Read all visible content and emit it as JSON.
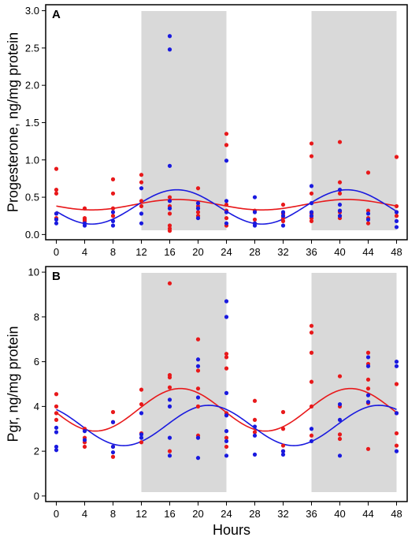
{
  "colors": {
    "red": "#e8191b",
    "blue": "#1a1adf",
    "shade": "#d9d9d9",
    "frame": "#000000"
  },
  "shared_x": {
    "label": "Hours",
    "ticks": [
      0,
      4,
      8,
      12,
      16,
      20,
      24,
      28,
      32,
      36,
      40,
      44,
      48
    ],
    "xlim": [
      -1.5,
      49.5
    ]
  },
  "chart_data": [
    {
      "type": "scatter",
      "panel_label": "A",
      "ylabel": "Progesterone, ng/mg protein",
      "ylim": [
        -0.07,
        3.08
      ],
      "yticks": [
        "0.0",
        "0.5",
        "1.0",
        "1.5",
        "2.0",
        "2.5",
        "3.0"
      ],
      "shaded_x_ranges": [
        [
          12,
          24
        ],
        [
          36,
          48
        ]
      ],
      "grid": false,
      "series": [
        {
          "color": "red",
          "points": [
            [
              0,
              0.88
            ],
            [
              0,
              0.6
            ],
            [
              0,
              0.55
            ],
            [
              0,
              0.28
            ],
            [
              0,
              0.22
            ],
            [
              4,
              0.35
            ],
            [
              4,
              0.22
            ],
            [
              4,
              0.2
            ],
            [
              4,
              0.18
            ],
            [
              8,
              0.74
            ],
            [
              8,
              0.55
            ],
            [
              8,
              0.35
            ],
            [
              8,
              0.25
            ],
            [
              12,
              0.8
            ],
            [
              12,
              0.7
            ],
            [
              12,
              0.45
            ],
            [
              12,
              0.38
            ],
            [
              16,
              0.5
            ],
            [
              16,
              0.38
            ],
            [
              16,
              0.28
            ],
            [
              16,
              0.12
            ],
            [
              16,
              0.08
            ],
            [
              16,
              0.05
            ],
            [
              20,
              0.62
            ],
            [
              20,
              0.38
            ],
            [
              20,
              0.3
            ],
            [
              20,
              0.25
            ],
            [
              24,
              1.35
            ],
            [
              24,
              1.2
            ],
            [
              24,
              0.4
            ],
            [
              24,
              0.32
            ],
            [
              24,
              0.22
            ],
            [
              24,
              0.12
            ],
            [
              28,
              0.32
            ],
            [
              28,
              0.2
            ],
            [
              28,
              0.15
            ],
            [
              32,
              0.4
            ],
            [
              32,
              0.28
            ],
            [
              32,
              0.22
            ],
            [
              32,
              0.18
            ],
            [
              36,
              1.22
            ],
            [
              36,
              1.05
            ],
            [
              36,
              0.55
            ],
            [
              36,
              0.28
            ],
            [
              36,
              0.22
            ],
            [
              36,
              0.18
            ],
            [
              40,
              1.24
            ],
            [
              40,
              0.7
            ],
            [
              40,
              0.55
            ],
            [
              40,
              0.3
            ],
            [
              40,
              0.22
            ],
            [
              44,
              0.83
            ],
            [
              44,
              0.32
            ],
            [
              44,
              0.22
            ],
            [
              44,
              0.15
            ],
            [
              48,
              1.04
            ],
            [
              48,
              0.38
            ],
            [
              48,
              0.3
            ],
            [
              48,
              0.25
            ]
          ],
          "fit": {
            "mesor": 0.4,
            "amplitude": 0.07,
            "peak_hour": 17
          }
        },
        {
          "color": "blue",
          "points": [
            [
              0,
              0.28
            ],
            [
              0,
              0.2
            ],
            [
              0,
              0.15
            ],
            [
              4,
              0.15
            ],
            [
              4,
              0.12
            ],
            [
              8,
              0.3
            ],
            [
              8,
              0.18
            ],
            [
              8,
              0.12
            ],
            [
              12,
              0.62
            ],
            [
              12,
              0.28
            ],
            [
              12,
              0.15
            ],
            [
              16,
              2.66
            ],
            [
              16,
              2.48
            ],
            [
              16,
              0.92
            ],
            [
              16,
              0.45
            ],
            [
              16,
              0.35
            ],
            [
              20,
              0.42
            ],
            [
              20,
              0.35
            ],
            [
              20,
              0.22
            ],
            [
              24,
              0.99
            ],
            [
              24,
              0.45
            ],
            [
              24,
              0.3
            ],
            [
              24,
              0.15
            ],
            [
              28,
              0.5
            ],
            [
              28,
              0.3
            ],
            [
              28,
              0.15
            ],
            [
              28,
              0.12
            ],
            [
              32,
              0.3
            ],
            [
              32,
              0.25
            ],
            [
              32,
              0.12
            ],
            [
              36,
              0.65
            ],
            [
              36,
              0.42
            ],
            [
              36,
              0.3
            ],
            [
              36,
              0.25
            ],
            [
              40,
              0.6
            ],
            [
              40,
              0.4
            ],
            [
              40,
              0.32
            ],
            [
              40,
              0.25
            ],
            [
              44,
              0.28
            ],
            [
              44,
              0.2
            ],
            [
              48,
              0.3
            ],
            [
              48,
              0.18
            ],
            [
              48,
              0.1
            ]
          ],
          "fit": {
            "mesor": 0.37,
            "amplitude": 0.23,
            "peak_hour": 17
          }
        }
      ]
    },
    {
      "type": "scatter",
      "panel_label": "B",
      "ylabel": "Pgr, ng/mg protein",
      "ylim": [
        -0.25,
        10.25
      ],
      "yticks": [
        "0",
        "2",
        "4",
        "6",
        "8",
        "10"
      ],
      "shaded_x_ranges": [
        [
          12,
          24
        ],
        [
          36,
          48
        ]
      ],
      "grid": false,
      "series": [
        {
          "color": "red",
          "points": [
            [
              0,
              4.55
            ],
            [
              0,
              4.0
            ],
            [
              0,
              3.7
            ],
            [
              0,
              3.4
            ],
            [
              4,
              3.0
            ],
            [
              4,
              2.6
            ],
            [
              4,
              2.4
            ],
            [
              4,
              2.2
            ],
            [
              8,
              3.75
            ],
            [
              8,
              3.3
            ],
            [
              8,
              2.2
            ],
            [
              8,
              1.75
            ],
            [
              12,
              4.75
            ],
            [
              12,
              4.1
            ],
            [
              12,
              2.8
            ],
            [
              12,
              2.4
            ],
            [
              16,
              9.5
            ],
            [
              16,
              5.4
            ],
            [
              16,
              5.3
            ],
            [
              16,
              4.85
            ],
            [
              16,
              2.0
            ],
            [
              20,
              7.0
            ],
            [
              20,
              5.6
            ],
            [
              20,
              4.8
            ],
            [
              20,
              4.0
            ],
            [
              20,
              2.7
            ],
            [
              24,
              6.35
            ],
            [
              24,
              6.2
            ],
            [
              24,
              5.7
            ],
            [
              24,
              3.7
            ],
            [
              24,
              2.6
            ],
            [
              24,
              2.2
            ],
            [
              28,
              4.25
            ],
            [
              28,
              3.4
            ],
            [
              28,
              2.85
            ],
            [
              32,
              3.75
            ],
            [
              32,
              3.0
            ],
            [
              32,
              2.25
            ],
            [
              32,
              2.0
            ],
            [
              36,
              7.6
            ],
            [
              36,
              7.3
            ],
            [
              36,
              6.4
            ],
            [
              36,
              5.1
            ],
            [
              36,
              4.0
            ],
            [
              36,
              2.7
            ],
            [
              40,
              5.35
            ],
            [
              40,
              4.0
            ],
            [
              40,
              2.75
            ],
            [
              40,
              2.55
            ],
            [
              44,
              6.4
            ],
            [
              44,
              5.9
            ],
            [
              44,
              5.2
            ],
            [
              44,
              4.8
            ],
            [
              44,
              4.15
            ],
            [
              44,
              2.1
            ],
            [
              48,
              5.0
            ],
            [
              48,
              3.7
            ],
            [
              48,
              2.8
            ],
            [
              48,
              2.25
            ]
          ],
          "fit": {
            "mesor": 3.85,
            "amplitude": 0.95,
            "peak_hour": 17.5
          }
        },
        {
          "color": "blue",
          "points": [
            [
              0,
              3.05
            ],
            [
              0,
              2.85
            ],
            [
              0,
              2.2
            ],
            [
              0,
              2.05
            ],
            [
              4,
              2.9
            ],
            [
              4,
              2.5
            ],
            [
              8,
              3.3
            ],
            [
              8,
              2.2
            ],
            [
              8,
              1.95
            ],
            [
              12,
              3.7
            ],
            [
              12,
              2.75
            ],
            [
              12,
              2.6
            ],
            [
              16,
              4.3
            ],
            [
              16,
              4.0
            ],
            [
              16,
              2.6
            ],
            [
              16,
              1.8
            ],
            [
              20,
              6.1
            ],
            [
              20,
              5.8
            ],
            [
              20,
              4.4
            ],
            [
              20,
              2.6
            ],
            [
              20,
              1.7
            ],
            [
              24,
              8.7
            ],
            [
              24,
              8.0
            ],
            [
              24,
              4.6
            ],
            [
              24,
              3.6
            ],
            [
              24,
              2.9
            ],
            [
              24,
              2.45
            ],
            [
              24,
              1.8
            ],
            [
              28,
              3.1
            ],
            [
              28,
              2.7
            ],
            [
              28,
              1.85
            ],
            [
              32,
              2.0
            ],
            [
              32,
              1.85
            ],
            [
              36,
              3.0
            ],
            [
              36,
              2.45
            ],
            [
              40,
              4.1
            ],
            [
              40,
              3.4
            ],
            [
              40,
              1.8
            ],
            [
              44,
              6.2
            ],
            [
              44,
              5.8
            ],
            [
              44,
              4.5
            ],
            [
              44,
              4.2
            ],
            [
              48,
              6.0
            ],
            [
              48,
              5.8
            ],
            [
              48,
              3.7
            ],
            [
              48,
              2.0
            ]
          ],
          "fit": {
            "mesor": 3.15,
            "amplitude": 0.9,
            "peak_hour": 21.5
          }
        }
      ]
    }
  ]
}
